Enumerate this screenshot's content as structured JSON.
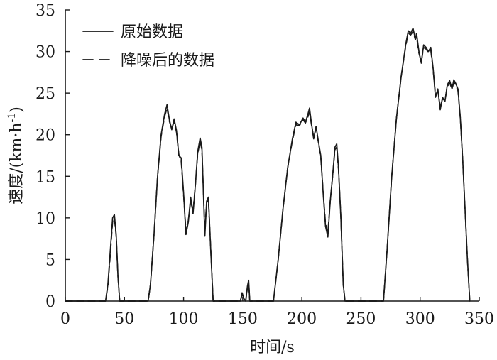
{
  "chart_data": {
    "type": "line",
    "xlabel": "时间/s",
    "ylabel_main": "速度/(km·h",
    "ylabel_sup": "-1",
    "ylabel_close": ")",
    "xlim": [
      0,
      350
    ],
    "ylim": [
      0,
      35
    ],
    "x_ticks": [
      0,
      50,
      100,
      150,
      200,
      250,
      300,
      350
    ],
    "y_ticks": [
      0,
      5,
      10,
      15,
      20,
      25,
      30,
      35
    ],
    "grid": false,
    "legend_position": "top-left",
    "series": [
      {
        "name": "原始数据",
        "line_style": "solid",
        "color": "#1a1a1a",
        "points": [
          [
            0,
            0
          ],
          [
            34,
            0
          ],
          [
            36,
            2
          ],
          [
            38,
            6
          ],
          [
            40,
            10
          ],
          [
            41.5,
            10.4
          ],
          [
            43,
            8
          ],
          [
            44.5,
            3
          ],
          [
            46,
            0
          ],
          [
            70,
            0
          ],
          [
            72,
            2
          ],
          [
            75,
            8
          ],
          [
            78,
            15
          ],
          [
            81,
            20
          ],
          [
            84,
            22.5
          ],
          [
            86,
            23.6
          ],
          [
            88,
            21.8
          ],
          [
            90,
            20.6
          ],
          [
            92,
            21.9
          ],
          [
            94,
            20.5
          ],
          [
            96,
            17.5
          ],
          [
            98,
            17.2
          ],
          [
            100,
            13
          ],
          [
            102,
            8
          ],
          [
            104,
            9.5
          ],
          [
            106,
            12.5
          ],
          [
            108,
            10.5
          ],
          [
            110,
            14
          ],
          [
            112,
            18
          ],
          [
            114,
            19.6
          ],
          [
            115.5,
            18.5
          ],
          [
            117,
            12
          ],
          [
            118,
            7.8
          ],
          [
            119.5,
            12
          ],
          [
            121,
            12.5
          ],
          [
            123,
            6
          ],
          [
            125,
            0
          ],
          [
            148,
            0
          ],
          [
            149.5,
            1
          ],
          [
            151,
            0.3
          ],
          [
            152.5,
            0
          ],
          [
            154,
            1.8
          ],
          [
            155,
            2.5
          ],
          [
            156,
            0
          ],
          [
            176,
            0
          ],
          [
            180,
            5
          ],
          [
            184,
            11
          ],
          [
            188,
            16
          ],
          [
            192,
            19.5
          ],
          [
            195,
            21.5
          ],
          [
            198,
            21.2
          ],
          [
            201,
            22
          ],
          [
            203,
            21.5
          ],
          [
            205,
            22.4
          ],
          [
            206.5,
            23.2
          ],
          [
            208,
            21.5
          ],
          [
            210,
            19.5
          ],
          [
            212,
            21
          ],
          [
            214,
            19.2
          ],
          [
            216,
            17.5
          ],
          [
            218,
            13
          ],
          [
            220,
            9
          ],
          [
            222,
            7.7
          ],
          [
            224,
            12
          ],
          [
            226,
            15
          ],
          [
            228,
            18.5
          ],
          [
            229.5,
            18.9
          ],
          [
            231,
            16
          ],
          [
            233,
            10
          ],
          [
            235,
            2
          ],
          [
            236.5,
            0
          ],
          [
            269,
            0
          ],
          [
            272,
            6
          ],
          [
            276,
            15
          ],
          [
            280,
            22
          ],
          [
            284,
            27
          ],
          [
            288,
            31
          ],
          [
            290,
            32.5
          ],
          [
            292,
            32.2
          ],
          [
            294,
            32.8
          ],
          [
            296,
            31.5
          ],
          [
            297,
            32.2
          ],
          [
            299,
            30
          ],
          [
            301,
            28.6
          ],
          [
            303,
            30.8
          ],
          [
            305,
            30.5
          ],
          [
            307,
            30
          ],
          [
            309,
            30.5
          ],
          [
            311,
            28
          ],
          [
            313,
            24.5
          ],
          [
            315,
            25.5
          ],
          [
            317,
            23
          ],
          [
            319,
            24.5
          ],
          [
            321,
            24
          ],
          [
            323,
            26
          ],
          [
            325,
            26.5
          ],
          [
            327,
            25.5
          ],
          [
            328.5,
            26.6
          ],
          [
            330,
            26.2
          ],
          [
            332,
            25.5
          ],
          [
            334,
            22
          ],
          [
            336,
            17
          ],
          [
            338,
            11
          ],
          [
            340,
            5
          ],
          [
            342,
            0
          ]
        ]
      },
      {
        "name": "降噪后的数据",
        "line_style": "dashed",
        "color": "#1a1a1a",
        "points": [
          [
            0,
            0
          ],
          [
            34,
            0
          ],
          [
            36,
            1.8
          ],
          [
            38,
            5.5
          ],
          [
            40,
            9.6
          ],
          [
            41.5,
            10
          ],
          [
            43,
            7.8
          ],
          [
            44.5,
            3
          ],
          [
            46,
            0
          ],
          [
            70,
            0
          ],
          [
            72,
            2
          ],
          [
            75,
            8
          ],
          [
            78,
            15
          ],
          [
            81,
            19.8
          ],
          [
            84,
            22.2
          ],
          [
            86,
            23.2
          ],
          [
            88,
            21.6
          ],
          [
            90,
            20.7
          ],
          [
            92,
            21.6
          ],
          [
            94,
            20.3
          ],
          [
            96,
            17.6
          ],
          [
            98,
            16.8
          ],
          [
            100,
            12.8
          ],
          [
            102,
            8.4
          ],
          [
            104,
            9.7
          ],
          [
            106,
            12
          ],
          [
            108,
            10.8
          ],
          [
            110,
            14
          ],
          [
            112,
            17.8
          ],
          [
            114,
            19.2
          ],
          [
            115.5,
            18.2
          ],
          [
            117,
            12.3
          ],
          [
            118,
            8.5
          ],
          [
            119.5,
            11.8
          ],
          [
            121,
            12.2
          ],
          [
            123,
            6.2
          ],
          [
            125,
            0
          ],
          [
            148,
            0
          ],
          [
            149.5,
            0.8
          ],
          [
            151,
            0.3
          ],
          [
            152.5,
            0
          ],
          [
            154,
            1.6
          ],
          [
            155,
            2.2
          ],
          [
            156,
            0
          ],
          [
            176,
            0
          ],
          [
            180,
            5
          ],
          [
            184,
            11
          ],
          [
            188,
            16
          ],
          [
            192,
            19.3
          ],
          [
            195,
            21.2
          ],
          [
            198,
            21.1
          ],
          [
            201,
            21.8
          ],
          [
            203,
            21.4
          ],
          [
            205,
            22.1
          ],
          [
            206.5,
            22.7
          ],
          [
            208,
            21.3
          ],
          [
            210,
            19.7
          ],
          [
            212,
            20.7
          ],
          [
            214,
            19.1
          ],
          [
            216,
            17.3
          ],
          [
            218,
            13.2
          ],
          [
            220,
            9.3
          ],
          [
            222,
            8.2
          ],
          [
            224,
            12
          ],
          [
            226,
            15
          ],
          [
            228,
            18.2
          ],
          [
            229.5,
            18.5
          ],
          [
            231,
            15.8
          ],
          [
            233,
            10
          ],
          [
            235,
            2
          ],
          [
            236.5,
            0
          ],
          [
            269,
            0
          ],
          [
            272,
            6
          ],
          [
            276,
            15
          ],
          [
            280,
            22
          ],
          [
            284,
            27
          ],
          [
            288,
            30.8
          ],
          [
            290,
            32.2
          ],
          [
            292,
            32
          ],
          [
            294,
            32.4
          ],
          [
            296,
            31.4
          ],
          [
            297,
            31.8
          ],
          [
            299,
            29.8
          ],
          [
            301,
            28.8
          ],
          [
            303,
            30.5
          ],
          [
            305,
            30.3
          ],
          [
            307,
            29.9
          ],
          [
            309,
            30.2
          ],
          [
            311,
            27.8
          ],
          [
            313,
            24.8
          ],
          [
            315,
            25.2
          ],
          [
            317,
            23.4
          ],
          [
            319,
            24.3
          ],
          [
            321,
            24.1
          ],
          [
            323,
            25.8
          ],
          [
            325,
            26.2
          ],
          [
            327,
            25.5
          ],
          [
            328.5,
            26.3
          ],
          [
            330,
            26
          ],
          [
            332,
            25.3
          ],
          [
            334,
            22
          ],
          [
            336,
            17
          ],
          [
            338,
            11
          ],
          [
            340,
            5
          ],
          [
            342,
            0
          ]
        ]
      }
    ]
  }
}
